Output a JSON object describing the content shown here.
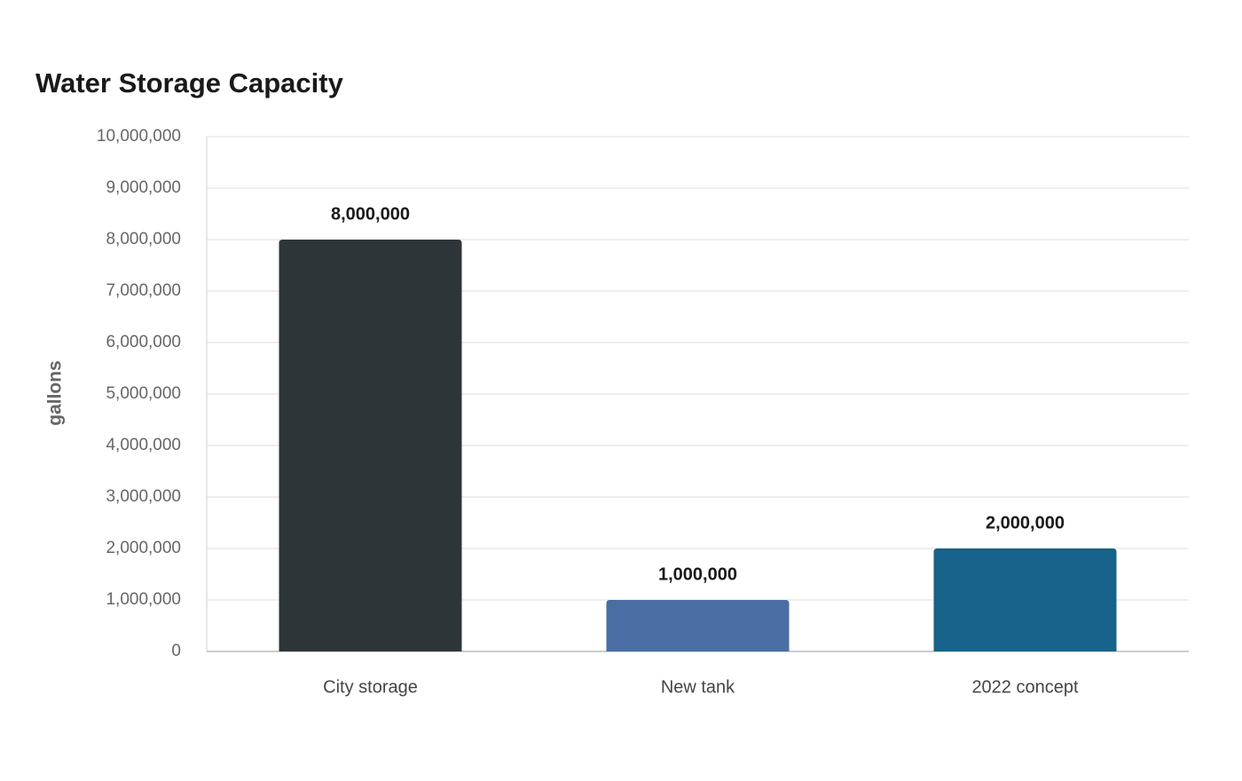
{
  "chart_data": {
    "type": "bar",
    "title": "Water Storage Capacity",
    "y_label": "gallons",
    "categories": [
      "City storage",
      "New tank",
      "2022 concept"
    ],
    "values": [
      8000000,
      1000000,
      2000000
    ],
    "value_labels": [
      "8,000,000",
      "1,000,000",
      "2,000,000"
    ],
    "colors": [
      "#2e3538",
      "#4a6da3",
      "#17628a"
    ],
    "ylim": [
      0,
      10000000
    ],
    "yticks": [
      0,
      {
        "value": 1000000,
        "label": "1,000,000"
      },
      {
        "value": 2000000,
        "label": "2,000,000"
      },
      {
        "value": 3000000,
        "label": "3,000,000"
      },
      {
        "value": 4000000,
        "label": "4,000,000"
      },
      {
        "value": 5000000,
        "label": "5,000,000"
      },
      {
        "value": 6000000,
        "label": "6,000,000"
      },
      {
        "value": 7000000,
        "label": "7,000,000"
      },
      {
        "value": 8000000,
        "label": "8,000,000"
      },
      {
        "value": 9000000,
        "label": "9,000,000"
      },
      {
        "value": 10000000,
        "label": "10,000,000"
      }
    ],
    "grid": true
  }
}
